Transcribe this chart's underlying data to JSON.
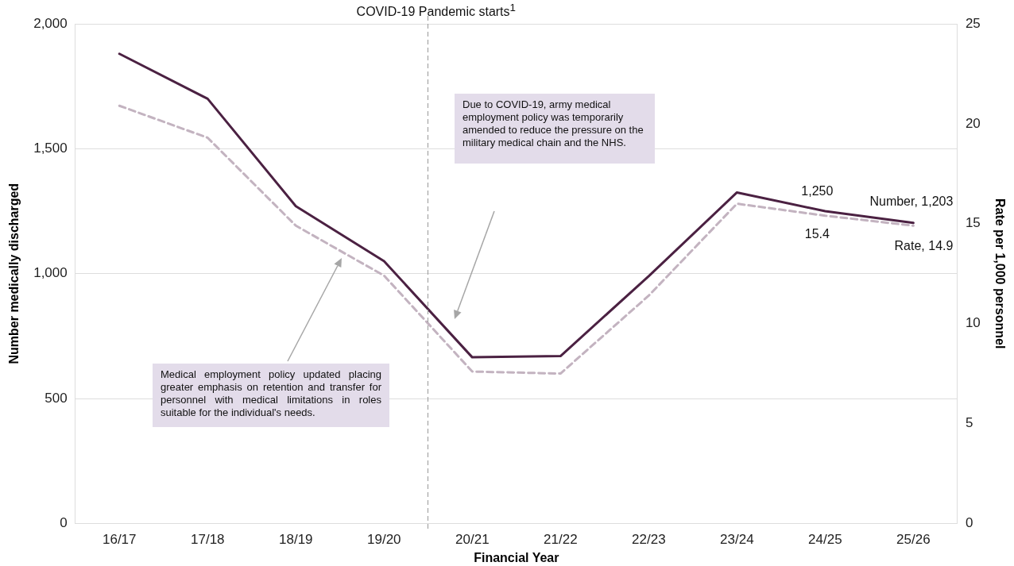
{
  "chart_data": {
    "type": "line",
    "xlabel": "Financial Year",
    "ylabel": "Number medically discharged",
    "y2label": "Rate per 1,000 personnel",
    "categories": [
      "16/17",
      "17/18",
      "18/19",
      "19/20",
      "20/21",
      "21/22",
      "22/23",
      "23/24",
      "24/25",
      "25/26"
    ],
    "series": [
      {
        "color": "#4b2142",
        "line_style": "solid",
        "values": [
          1880,
          1700,
          1270,
          1050,
          665,
          670,
          990,
          1325,
          1250,
          1203
        ],
        "value_labels": [
          null,
          null,
          null,
          null,
          null,
          null,
          null,
          null,
          "1,250",
          "Number, 1,203"
        ]
      },
      {
        "color": "#c3b3c0",
        "line_style": "dashed",
        "axis": "y2",
        "values": [
          20.9,
          19.3,
          14.9,
          12.4,
          7.6,
          7.5,
          11.4,
          16.0,
          15.4,
          14.9
        ],
        "value_labels": [
          null,
          null,
          null,
          null,
          null,
          null,
          null,
          null,
          "15.4",
          "Rate, 14.9"
        ]
      }
    ],
    "ylim": [
      0,
      2000
    ],
    "yticks": [
      {
        "value": 0,
        "label": "0"
      },
      {
        "value": 500,
        "label": "500"
      },
      {
        "value": 1000,
        "label": "1,000"
      },
      {
        "value": 1500,
        "label": "1,500"
      },
      {
        "value": 2000,
        "label": "2,000"
      }
    ],
    "y2lim": [
      0,
      25
    ],
    "y2ticks": [
      0,
      5,
      10,
      15,
      20,
      25
    ],
    "grid": "y",
    "legend": false,
    "marker": "none",
    "annotations": [
      "COVID-19 Pandemic starts$^{1}$",
      "Medical employment policy updated placing greater emphasis on retention and transfer for personnel with medical limitations in roles suitable for the individual's needs.",
      "Due to COVID-19, army medical employment policy was temporarily amended to reduce the pressure on the military medical chain and the NHS."
    ]
  }
}
